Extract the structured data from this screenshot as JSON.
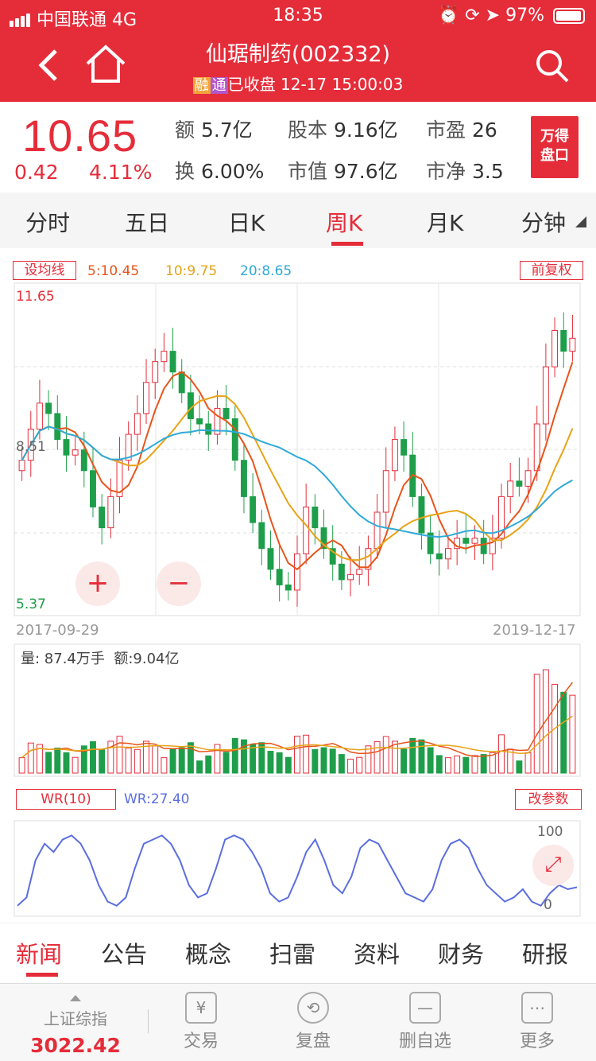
{
  "status_bar": {
    "carrier": "中国联通 4G",
    "time": "18:35",
    "battery": "97%"
  },
  "header": {
    "title": "仙琚制药(002332)",
    "tag_rong": "融",
    "tag_tong": "通",
    "status": "已收盘 12-17 15:00:03"
  },
  "quote": {
    "price": "10.65",
    "change": "0.42",
    "change_pct": "4.11%",
    "amount_label": "额",
    "amount": "5.7亿",
    "turnover_label": "换",
    "turnover": "6.00%",
    "capital_label": "股本",
    "capital": "9.16亿",
    "mktcap_label": "市值",
    "mktcap": "97.6亿",
    "pe_label": "市盈",
    "pe": "26",
    "pb_label": "市净",
    "pb": "3.5",
    "wande_line1": "万得",
    "wande_line2": "盘口"
  },
  "period_tabs": [
    "分时",
    "五日",
    "日K",
    "周K",
    "月K",
    "分钟"
  ],
  "active_period": "周K",
  "kline": {
    "set_ma_label": "设均线",
    "ma5": "5:10.45",
    "ma10": "10:9.75",
    "ma20": "20:8.65",
    "adjust_label": "前复权",
    "price_high": "11.65",
    "price_mid": "8.51",
    "price_low": "5.37",
    "date_start": "2017-09-29",
    "date_end": "2019-12-17",
    "volume_text": "量: 87.4万手",
    "amount_text": "额:9.04亿",
    "wr_button": "WR(10)",
    "wr_value": "WR:27.40",
    "change_params": "改参数",
    "wr_100": "100",
    "wr_0": "0"
  },
  "chart_data": {
    "type": "candlestick",
    "period": "weekly",
    "x_range": [
      "2017-09-29",
      "2019-12-17"
    ],
    "ylim": [
      5.37,
      11.65
    ],
    "close_path": [
      8.3,
      8.9,
      9.4,
      9.2,
      8.7,
      8.4,
      8.5,
      8.1,
      7.4,
      7.0,
      7.6,
      8.3,
      8.8,
      9.2,
      9.8,
      10.2,
      10.4,
      10.0,
      9.6,
      9.1,
      9.0,
      8.8,
      9.3,
      9.1,
      8.3,
      7.6,
      7.1,
      6.6,
      6.2,
      5.9,
      5.8,
      6.5,
      7.4,
      7.0,
      6.6,
      6.3,
      6.0,
      6.1,
      6.2,
      6.6,
      7.3,
      8.1,
      8.7,
      8.4,
      7.6,
      6.9,
      6.5,
      6.4,
      6.6,
      6.8,
      6.7,
      6.8,
      6.5,
      6.8,
      7.6,
      7.9,
      7.8,
      8.1,
      9.0,
      10.1,
      10.8,
      10.4,
      10.65
    ],
    "ma_last": {
      "MA5": 10.45,
      "MA10": 9.75,
      "MA20": 8.65
    },
    "volume_last": "87.4万手",
    "wr": [
      5,
      15,
      60,
      80,
      70,
      85,
      90,
      80,
      60,
      30,
      10,
      5,
      15,
      50,
      80,
      85,
      90,
      80,
      60,
      30,
      15,
      20,
      50,
      85,
      90,
      85,
      70,
      50,
      20,
      10,
      15,
      40,
      70,
      85,
      60,
      30,
      20,
      40,
      75,
      85,
      80,
      60,
      40,
      20,
      15,
      10,
      25,
      60,
      80,
      85,
      75,
      50,
      30,
      20,
      10,
      15,
      25,
      10,
      5,
      20,
      30,
      25,
      27.4
    ],
    "wr_range": [
      0,
      100
    ]
  },
  "news_tabs": [
    "新闻",
    "公告",
    "概念",
    "扫雷",
    "资料",
    "财务",
    "研报"
  ],
  "bottom_bar": {
    "index_name": "上证综指",
    "index_value": "3022.42",
    "trade": "交易",
    "replay": "复盘",
    "remove_fav": "删自选",
    "more": "更多"
  },
  "colors": {
    "up": "#e52d3a",
    "down": "#1e9e4a",
    "ma5": "#e8541a",
    "ma10": "#e8a317",
    "ma20": "#2eaad8",
    "wr": "#5b6ee0"
  }
}
